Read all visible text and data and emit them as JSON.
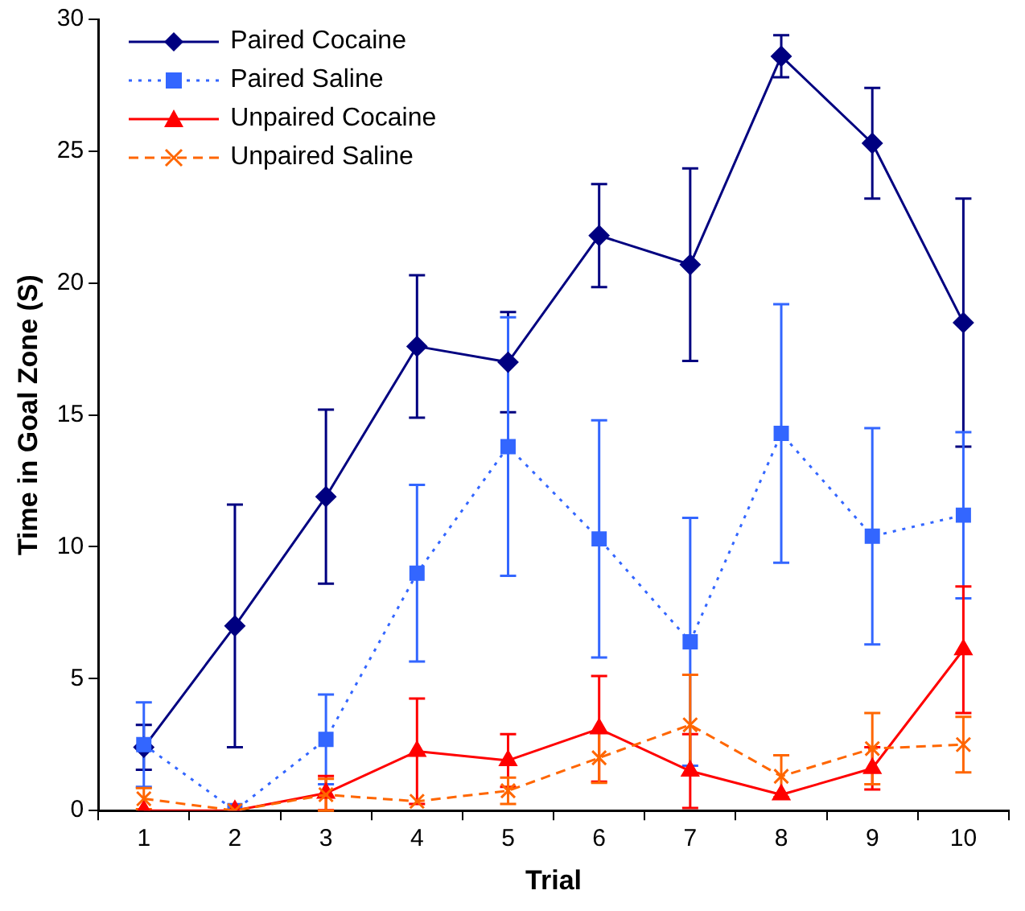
{
  "chart_data": {
    "type": "line",
    "xlabel": "Trial",
    "ylabel": "Time in Goal Zone (S)",
    "categories": [
      "1",
      "2",
      "3",
      "4",
      "5",
      "6",
      "7",
      "8",
      "9",
      "10"
    ],
    "ylim": [
      0,
      30
    ],
    "yticks": [
      0,
      5,
      10,
      15,
      20,
      25,
      30
    ],
    "grid": false,
    "legend": "top left",
    "series": [
      {
        "name": "Paired Cocaine",
        "color": "#000080",
        "marker": "diamond",
        "line_style": "solid",
        "values": [
          2.4,
          7.0,
          11.9,
          17.6,
          17.0,
          21.8,
          20.7,
          28.6,
          25.3,
          18.5
        ],
        "errors": [
          0.85,
          4.6,
          3.3,
          2.7,
          1.9,
          1.95,
          3.65,
          0.8,
          2.1,
          4.7
        ]
      },
      {
        "name": "Paired Saline",
        "color": "#3366ff",
        "marker": "square",
        "line_style": "dotted",
        "values": [
          2.5,
          0,
          2.7,
          9.0,
          13.8,
          10.3,
          6.4,
          14.3,
          10.4,
          11.2
        ],
        "errors": [
          1.6,
          null,
          1.7,
          3.35,
          4.9,
          4.5,
          4.7,
          4.9,
          4.1,
          3.15
        ]
      },
      {
        "name": "Unpaired Cocaine",
        "color": "#ff0000",
        "marker": "triangle",
        "line_style": "solid",
        "values": [
          0,
          0,
          0.66,
          2.25,
          1.9,
          3.1,
          1.5,
          0.6,
          1.6,
          6.1
        ],
        "errors": [
          null,
          null,
          0.65,
          2.0,
          1.0,
          2.0,
          1.4,
          null,
          0.8,
          2.4
        ]
      },
      {
        "name": "Unpaired Saline",
        "color": "#ff6600",
        "marker": "cross",
        "line_style": "dashed",
        "values": [
          0.45,
          0,
          0.6,
          0.35,
          0.75,
          2.0,
          3.25,
          1.3,
          2.35,
          2.5
        ],
        "errors": [
          0.4,
          null,
          0.6,
          null,
          0.5,
          0.95,
          1.9,
          0.8,
          1.35,
          1.05
        ]
      }
    ]
  }
}
